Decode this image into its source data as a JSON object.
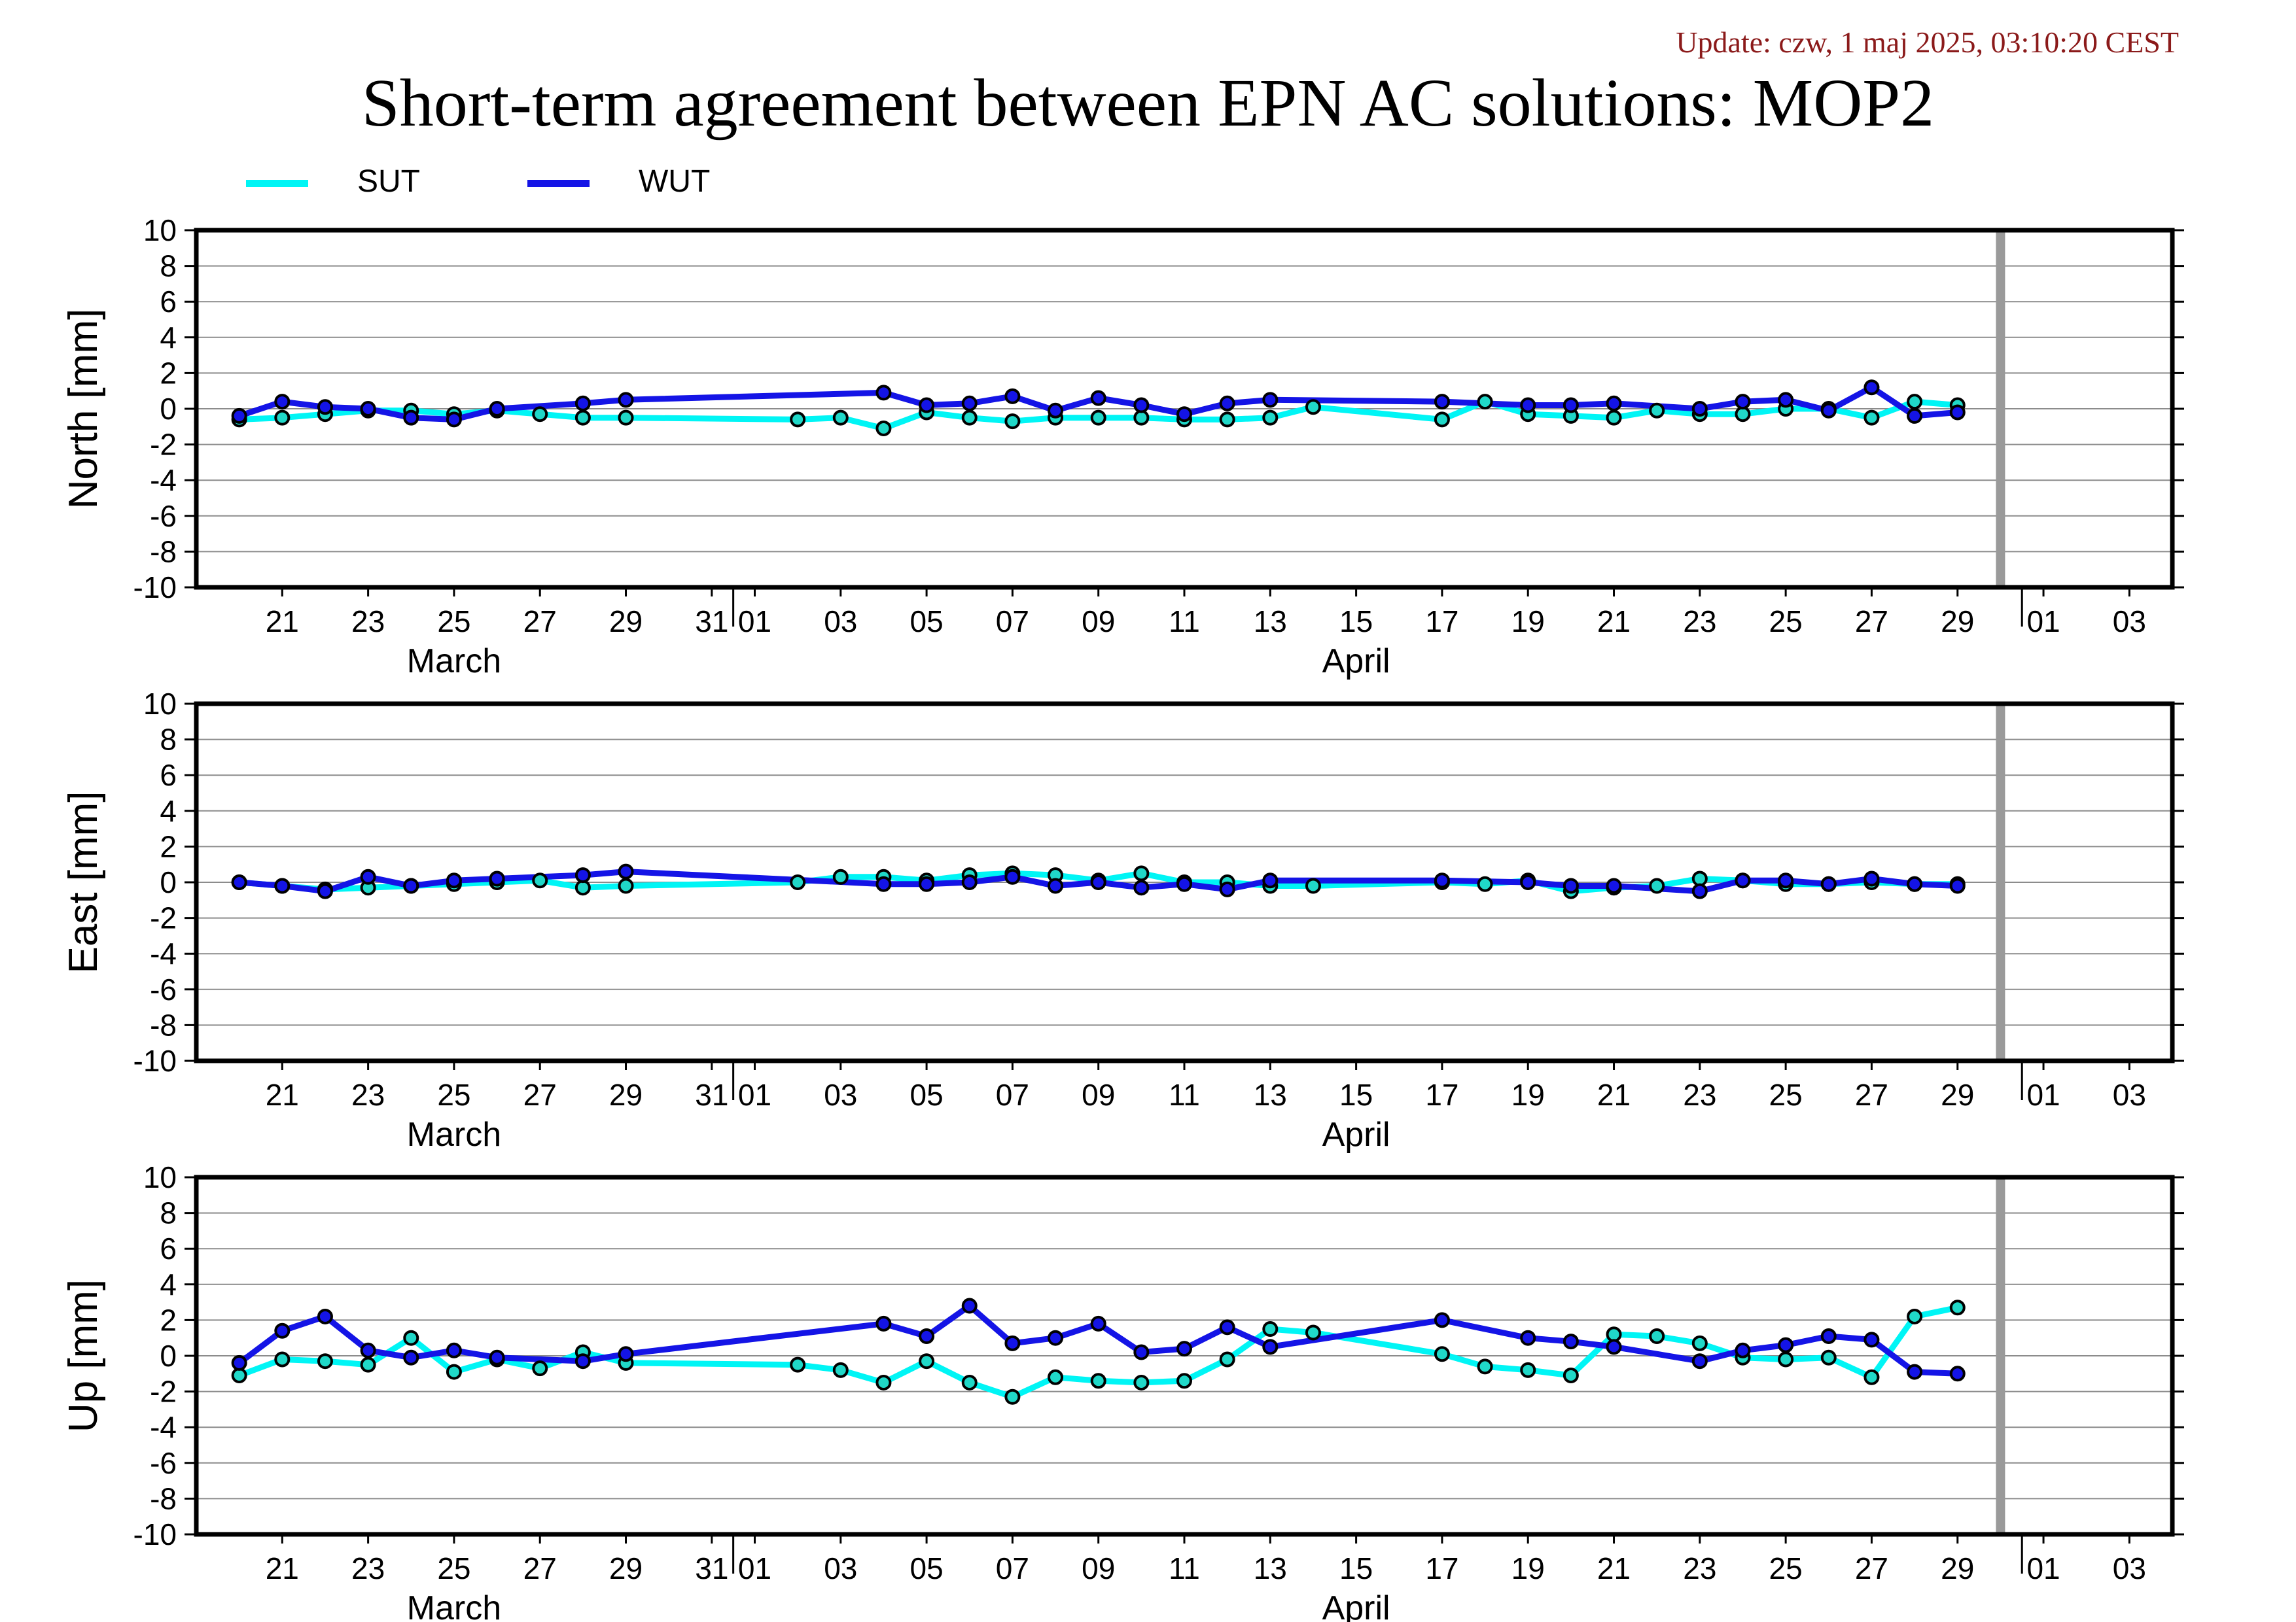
{
  "update_text": "Update: czw, 1 maj 2025, 03:10:20 CEST",
  "title": "Short-term agreement between EPN AC solutions: MOP2",
  "colors": {
    "SUT": "#00f5f5",
    "WUT": "#1414e6",
    "SUT_marker": "#20d8c8",
    "WUT_marker": "#1414e6",
    "today_bar": "#9a9a9a"
  },
  "chart_data": [
    {
      "type": "line",
      "ylabel": "North [mm]",
      "ylim": [
        -10,
        10
      ],
      "yticks": [
        10,
        8,
        6,
        4,
        2,
        0,
        -2,
        -4,
        -6,
        -8,
        -10
      ],
      "xlim": [
        "2025-03-19",
        "2025-05-04"
      ],
      "xtick_labels": [
        {
          "date": "2025-03-21",
          "label": "21"
        },
        {
          "date": "2025-03-23",
          "label": "23"
        },
        {
          "date": "2025-03-25",
          "label": "25"
        },
        {
          "date": "2025-03-27",
          "label": "27"
        },
        {
          "date": "2025-03-29",
          "label": "29"
        },
        {
          "date": "2025-03-31",
          "label": "31"
        },
        {
          "date": "2025-04-01",
          "label": "01"
        },
        {
          "date": "2025-04-03",
          "label": "03"
        },
        {
          "date": "2025-04-05",
          "label": "05"
        },
        {
          "date": "2025-04-07",
          "label": "07"
        },
        {
          "date": "2025-04-09",
          "label": "09"
        },
        {
          "date": "2025-04-11",
          "label": "11"
        },
        {
          "date": "2025-04-13",
          "label": "13"
        },
        {
          "date": "2025-04-15",
          "label": "15"
        },
        {
          "date": "2025-04-17",
          "label": "17"
        },
        {
          "date": "2025-04-19",
          "label": "19"
        },
        {
          "date": "2025-04-21",
          "label": "21"
        },
        {
          "date": "2025-04-23",
          "label": "23"
        },
        {
          "date": "2025-04-25",
          "label": "25"
        },
        {
          "date": "2025-04-27",
          "label": "27"
        },
        {
          "date": "2025-04-29",
          "label": "29"
        },
        {
          "date": "2025-05-01",
          "label": "01"
        },
        {
          "date": "2025-05-03",
          "label": "03"
        }
      ],
      "month_labels": [
        {
          "date": "2025-03-25",
          "label": "March"
        },
        {
          "date": "2025-04-15",
          "label": "April"
        }
      ],
      "month_boundaries": [
        "2025-04-01",
        "2025-05-01"
      ],
      "today_marker": "2025-04-30",
      "series": [
        {
          "name": "SUT",
          "x": [
            "2025-03-20",
            "2025-03-21",
            "2025-03-22",
            "2025-03-23",
            "2025-03-24",
            "2025-03-25",
            "2025-03-26",
            "2025-03-27",
            "2025-03-28",
            "2025-03-29",
            "2025-04-02",
            "2025-04-03",
            "2025-04-04",
            "2025-04-05",
            "2025-04-06",
            "2025-04-07",
            "2025-04-08",
            "2025-04-09",
            "2025-04-10",
            "2025-04-11",
            "2025-04-12",
            "2025-04-13",
            "2025-04-14",
            "2025-04-17",
            "2025-04-18",
            "2025-04-19",
            "2025-04-20",
            "2025-04-21",
            "2025-04-22",
            "2025-04-23",
            "2025-04-24",
            "2025-04-25",
            "2025-04-26",
            "2025-04-27",
            "2025-04-28",
            "2025-04-29"
          ],
          "y": [
            -0.6,
            -0.5,
            -0.3,
            -0.1,
            -0.1,
            -0.3,
            -0.1,
            -0.3,
            -0.5,
            -0.5,
            -0.6,
            -0.5,
            -1.1,
            -0.2,
            -0.5,
            -0.7,
            -0.5,
            -0.5,
            -0.5,
            -0.6,
            -0.6,
            -0.5,
            0.1,
            -0.6,
            0.4,
            -0.3,
            -0.4,
            -0.5,
            -0.1,
            -0.3,
            -0.3,
            0.0,
            0.0,
            -0.5,
            0.4,
            0.2
          ]
        },
        {
          "name": "WUT",
          "x": [
            "2025-03-20",
            "2025-03-21",
            "2025-03-22",
            "2025-03-23",
            "2025-03-24",
            "2025-03-25",
            "2025-03-26",
            "2025-03-28",
            "2025-03-29",
            "2025-04-04",
            "2025-04-05",
            "2025-04-06",
            "2025-04-07",
            "2025-04-08",
            "2025-04-09",
            "2025-04-10",
            "2025-04-11",
            "2025-04-12",
            "2025-04-13",
            "2025-04-17",
            "2025-04-19",
            "2025-04-20",
            "2025-04-21",
            "2025-04-23",
            "2025-04-24",
            "2025-04-25",
            "2025-04-26",
            "2025-04-27",
            "2025-04-28",
            "2025-04-29"
          ],
          "y": [
            -0.4,
            0.4,
            0.1,
            0.0,
            -0.5,
            -0.6,
            0.0,
            0.3,
            0.5,
            0.9,
            0.2,
            0.3,
            0.7,
            -0.1,
            0.6,
            0.2,
            -0.3,
            0.3,
            0.5,
            0.4,
            0.2,
            0.2,
            0.3,
            0.0,
            0.4,
            0.5,
            -0.1,
            1.2,
            -0.4,
            -0.2
          ]
        }
      ]
    },
    {
      "type": "line",
      "ylabel": "East [mm]",
      "ylim": [
        -10,
        10
      ],
      "yticks": [
        10,
        8,
        6,
        4,
        2,
        0,
        -2,
        -4,
        -6,
        -8,
        -10
      ],
      "xlim": [
        "2025-03-19",
        "2025-05-04"
      ],
      "xtick_labels": [
        {
          "date": "2025-03-21",
          "label": "21"
        },
        {
          "date": "2025-03-23",
          "label": "23"
        },
        {
          "date": "2025-03-25",
          "label": "25"
        },
        {
          "date": "2025-03-27",
          "label": "27"
        },
        {
          "date": "2025-03-29",
          "label": "29"
        },
        {
          "date": "2025-03-31",
          "label": "31"
        },
        {
          "date": "2025-04-01",
          "label": "01"
        },
        {
          "date": "2025-04-03",
          "label": "03"
        },
        {
          "date": "2025-04-05",
          "label": "05"
        },
        {
          "date": "2025-04-07",
          "label": "07"
        },
        {
          "date": "2025-04-09",
          "label": "09"
        },
        {
          "date": "2025-04-11",
          "label": "11"
        },
        {
          "date": "2025-04-13",
          "label": "13"
        },
        {
          "date": "2025-04-15",
          "label": "15"
        },
        {
          "date": "2025-04-17",
          "label": "17"
        },
        {
          "date": "2025-04-19",
          "label": "19"
        },
        {
          "date": "2025-04-21",
          "label": "21"
        },
        {
          "date": "2025-04-23",
          "label": "23"
        },
        {
          "date": "2025-04-25",
          "label": "25"
        },
        {
          "date": "2025-04-27",
          "label": "27"
        },
        {
          "date": "2025-04-29",
          "label": "29"
        },
        {
          "date": "2025-05-01",
          "label": "01"
        },
        {
          "date": "2025-05-03",
          "label": "03"
        }
      ],
      "month_labels": [
        {
          "date": "2025-03-25",
          "label": "March"
        },
        {
          "date": "2025-04-15",
          "label": "April"
        }
      ],
      "month_boundaries": [
        "2025-04-01",
        "2025-05-01"
      ],
      "today_marker": "2025-04-30",
      "series": [
        {
          "name": "SUT",
          "x": [
            "2025-03-20",
            "2025-03-21",
            "2025-03-22",
            "2025-03-23",
            "2025-03-24",
            "2025-03-25",
            "2025-03-26",
            "2025-03-27",
            "2025-03-28",
            "2025-03-29",
            "2025-04-02",
            "2025-04-03",
            "2025-04-04",
            "2025-04-05",
            "2025-04-06",
            "2025-04-07",
            "2025-04-08",
            "2025-04-09",
            "2025-04-10",
            "2025-04-11",
            "2025-04-12",
            "2025-04-13",
            "2025-04-14",
            "2025-04-17",
            "2025-04-18",
            "2025-04-19",
            "2025-04-20",
            "2025-04-21",
            "2025-04-22",
            "2025-04-23",
            "2025-04-24",
            "2025-04-25",
            "2025-04-26",
            "2025-04-27",
            "2025-04-28",
            "2025-04-29"
          ],
          "y": [
            0.0,
            -0.2,
            -0.4,
            -0.3,
            -0.2,
            -0.1,
            0.0,
            0.1,
            -0.3,
            -0.2,
            0.0,
            0.3,
            0.3,
            0.1,
            0.4,
            0.5,
            0.4,
            0.1,
            0.5,
            0.0,
            0.0,
            -0.2,
            -0.2,
            0.0,
            -0.1,
            0.1,
            -0.5,
            -0.3,
            -0.2,
            0.2,
            0.1,
            -0.1,
            -0.1,
            0.0,
            -0.1,
            -0.1
          ]
        },
        {
          "name": "WUT",
          "x": [
            "2025-03-20",
            "2025-03-21",
            "2025-03-22",
            "2025-03-23",
            "2025-03-24",
            "2025-03-25",
            "2025-03-26",
            "2025-03-28",
            "2025-03-29",
            "2025-04-04",
            "2025-04-05",
            "2025-04-06",
            "2025-04-07",
            "2025-04-08",
            "2025-04-09",
            "2025-04-10",
            "2025-04-11",
            "2025-04-12",
            "2025-04-13",
            "2025-04-17",
            "2025-04-19",
            "2025-04-20",
            "2025-04-21",
            "2025-04-23",
            "2025-04-24",
            "2025-04-25",
            "2025-04-26",
            "2025-04-27",
            "2025-04-28",
            "2025-04-29"
          ],
          "y": [
            0.0,
            -0.2,
            -0.5,
            0.3,
            -0.2,
            0.1,
            0.2,
            0.4,
            0.6,
            -0.1,
            -0.1,
            0.0,
            0.3,
            -0.2,
            0.0,
            -0.3,
            -0.1,
            -0.4,
            0.1,
            0.1,
            0.0,
            -0.2,
            -0.2,
            -0.5,
            0.1,
            0.1,
            -0.1,
            0.2,
            -0.1,
            -0.2
          ]
        }
      ]
    },
    {
      "type": "line",
      "ylabel": "Up [mm]",
      "ylim": [
        -10,
        10
      ],
      "yticks": [
        10,
        8,
        6,
        4,
        2,
        0,
        -2,
        -4,
        -6,
        -8,
        -10
      ],
      "xlim": [
        "2025-03-19",
        "2025-05-04"
      ],
      "xtick_labels": [
        {
          "date": "2025-03-21",
          "label": "21"
        },
        {
          "date": "2025-03-23",
          "label": "23"
        },
        {
          "date": "2025-03-25",
          "label": "25"
        },
        {
          "date": "2025-03-27",
          "label": "27"
        },
        {
          "date": "2025-03-29",
          "label": "29"
        },
        {
          "date": "2025-03-31",
          "label": "31"
        },
        {
          "date": "2025-04-01",
          "label": "01"
        },
        {
          "date": "2025-04-03",
          "label": "03"
        },
        {
          "date": "2025-04-05",
          "label": "05"
        },
        {
          "date": "2025-04-07",
          "label": "07"
        },
        {
          "date": "2025-04-09",
          "label": "09"
        },
        {
          "date": "2025-04-11",
          "label": "11"
        },
        {
          "date": "2025-04-13",
          "label": "13"
        },
        {
          "date": "2025-04-15",
          "label": "15"
        },
        {
          "date": "2025-04-17",
          "label": "17"
        },
        {
          "date": "2025-04-19",
          "label": "19"
        },
        {
          "date": "2025-04-21",
          "label": "21"
        },
        {
          "date": "2025-04-23",
          "label": "23"
        },
        {
          "date": "2025-04-25",
          "label": "25"
        },
        {
          "date": "2025-04-27",
          "label": "27"
        },
        {
          "date": "2025-04-29",
          "label": "29"
        },
        {
          "date": "2025-05-01",
          "label": "01"
        },
        {
          "date": "2025-05-03",
          "label": "03"
        }
      ],
      "month_labels": [
        {
          "date": "2025-03-25",
          "label": "March"
        },
        {
          "date": "2025-04-15",
          "label": "April"
        }
      ],
      "month_boundaries": [
        "2025-04-01",
        "2025-05-01"
      ],
      "today_marker": "2025-04-30",
      "series": [
        {
          "name": "SUT",
          "x": [
            "2025-03-20",
            "2025-03-21",
            "2025-03-22",
            "2025-03-23",
            "2025-03-24",
            "2025-03-25",
            "2025-03-26",
            "2025-03-27",
            "2025-03-28",
            "2025-03-29",
            "2025-04-02",
            "2025-04-03",
            "2025-04-04",
            "2025-04-05",
            "2025-04-06",
            "2025-04-07",
            "2025-04-08",
            "2025-04-09",
            "2025-04-10",
            "2025-04-11",
            "2025-04-12",
            "2025-04-13",
            "2025-04-14",
            "2025-04-17",
            "2025-04-18",
            "2025-04-19",
            "2025-04-20",
            "2025-04-21",
            "2025-04-22",
            "2025-04-23",
            "2025-04-24",
            "2025-04-25",
            "2025-04-26",
            "2025-04-27",
            "2025-04-28",
            "2025-04-29"
          ],
          "y": [
            -1.1,
            -0.2,
            -0.3,
            -0.5,
            1.0,
            -0.9,
            -0.2,
            -0.7,
            0.2,
            -0.4,
            -0.5,
            -0.8,
            -1.5,
            -0.3,
            -1.5,
            -2.3,
            -1.2,
            -1.4,
            -1.5,
            -1.4,
            -0.2,
            1.5,
            1.3,
            0.1,
            -0.6,
            -0.8,
            -1.1,
            1.2,
            1.1,
            0.7,
            -0.1,
            -0.2,
            -0.1,
            -1.2,
            2.2,
            2.7
          ]
        },
        {
          "name": "WUT",
          "x": [
            "2025-03-20",
            "2025-03-21",
            "2025-03-22",
            "2025-03-23",
            "2025-03-24",
            "2025-03-25",
            "2025-03-26",
            "2025-03-28",
            "2025-03-29",
            "2025-04-04",
            "2025-04-05",
            "2025-04-06",
            "2025-04-07",
            "2025-04-08",
            "2025-04-09",
            "2025-04-10",
            "2025-04-11",
            "2025-04-12",
            "2025-04-13",
            "2025-04-17",
            "2025-04-19",
            "2025-04-20",
            "2025-04-21",
            "2025-04-23",
            "2025-04-24",
            "2025-04-25",
            "2025-04-26",
            "2025-04-27",
            "2025-04-28",
            "2025-04-29"
          ],
          "y": [
            -0.4,
            1.4,
            2.2,
            0.3,
            -0.1,
            0.3,
            -0.1,
            -0.3,
            0.1,
            1.8,
            1.1,
            2.8,
            0.7,
            1.0,
            1.8,
            0.2,
            0.4,
            1.6,
            0.5,
            2.0,
            1.0,
            0.8,
            0.5,
            -0.3,
            0.3,
            0.6,
            1.1,
            0.9,
            -0.9,
            -1.0
          ]
        }
      ]
    }
  ]
}
